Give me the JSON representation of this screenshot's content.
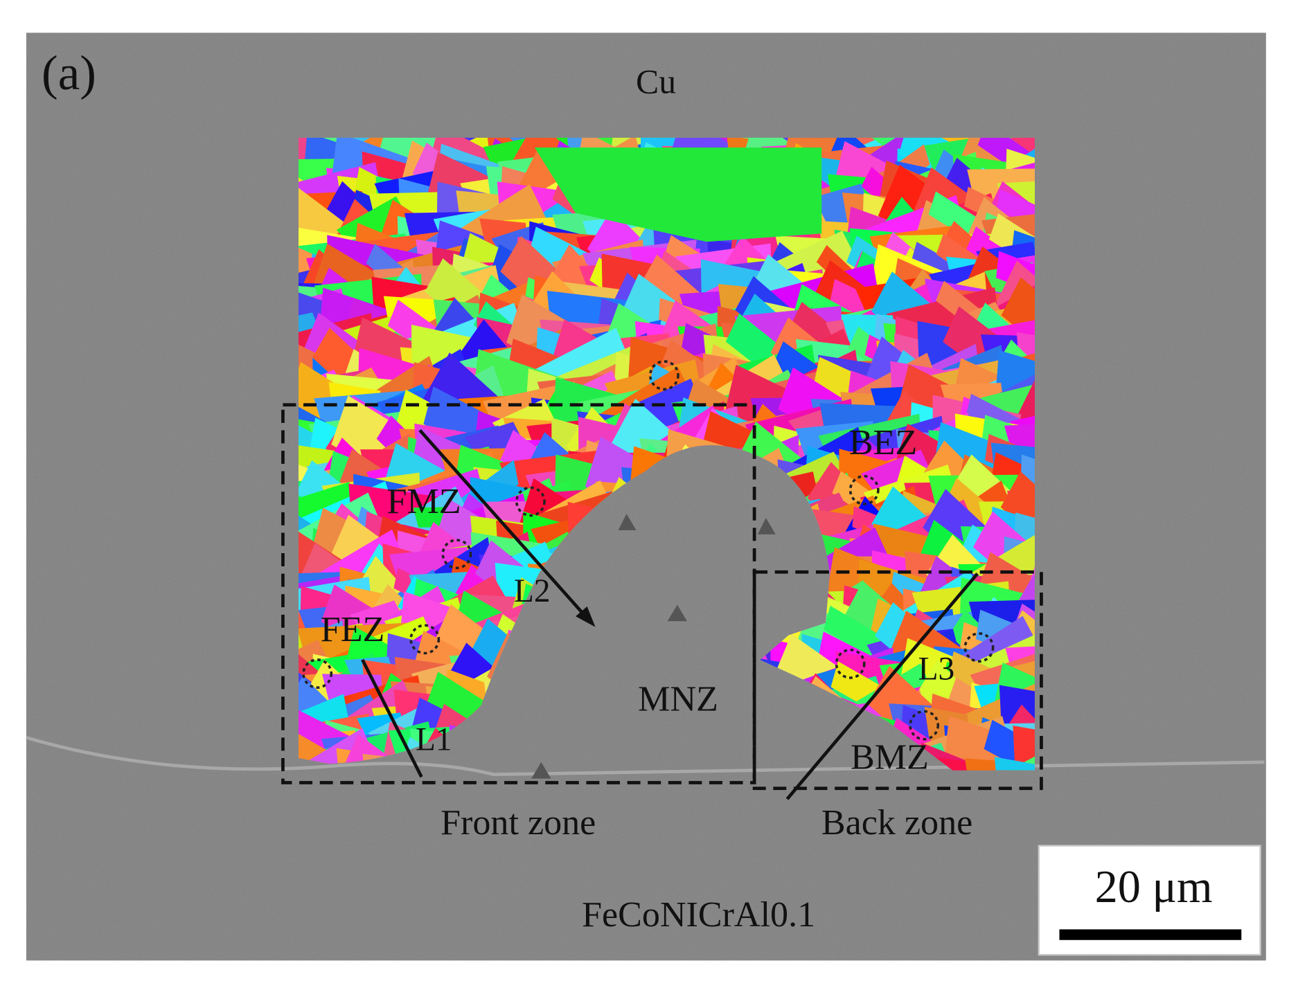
{
  "panel_label": "(a)",
  "materials": {
    "top": "Cu",
    "bottom": "FeCoNICrAl0.1"
  },
  "zones": {
    "bez": "BEZ",
    "fmz": "FMZ",
    "fez": "FEZ",
    "mnz": "MNZ",
    "bmz": "BMZ"
  },
  "lines": {
    "l1": "L1",
    "l2": "L2",
    "l3": "L3"
  },
  "boxes": {
    "front": "Front zone",
    "back": "Back zone"
  },
  "scale_bar": "20 μm"
}
